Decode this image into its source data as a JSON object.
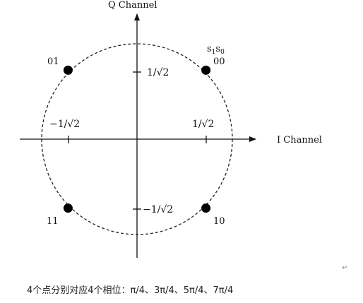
{
  "axes": {
    "i_label": "I Channel",
    "q_label": "Q Channel"
  },
  "bits_label": {
    "s1": "s",
    "s1_sub": "1",
    "s0": "s",
    "s0_sub": "0"
  },
  "ticks": {
    "pos_x": "1/√2",
    "neg_x": "−1/√2",
    "pos_y": "1/√2",
    "neg_y": "−1/√2"
  },
  "points": [
    {
      "label": "00",
      "i": 0.7071,
      "q": 0.7071
    },
    {
      "label": "01",
      "i": -0.7071,
      "q": 0.7071
    },
    {
      "label": "11",
      "i": -0.7071,
      "q": -0.7071
    },
    {
      "label": "10",
      "i": 0.7071,
      "q": -0.7071
    }
  ],
  "caption": "4个点分别对应4个相位：π/4、3π/4、5π/4、7π/4",
  "return_mark": "↵"
}
